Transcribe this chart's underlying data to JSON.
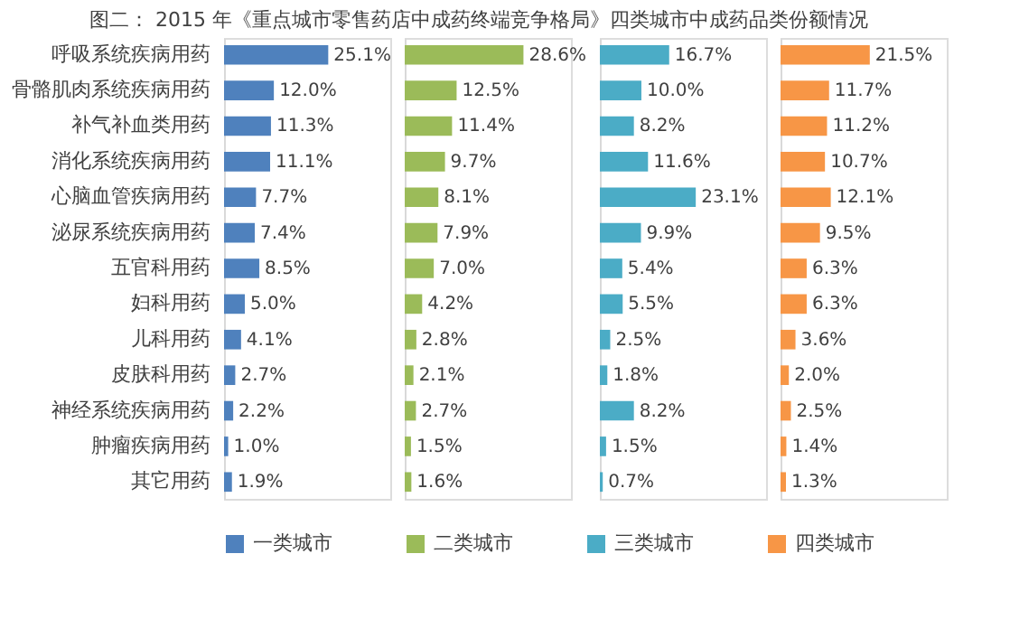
{
  "chart_data": [
    {
      "type": "bar",
      "orientation": "horizontal",
      "title": "图二： 2015 年《重点城市零售药店中成药终端竞争格局》四类城市中成药品类份额情况",
      "categories": [
        "呼吸系统疾病用药",
        "骨骼肌肉系统疾病用药",
        "补气补血类用药",
        "消化系统疾病用药",
        "心脑血管疾病用药",
        "泌尿系统疾病用药",
        "五官科用药",
        "妇科用药",
        "儿科用药",
        "皮肤科用药",
        "神经系统疾病用药",
        "肿瘤疾病用药",
        "其它用药"
      ],
      "series": [
        {
          "name": "一类城市",
          "color": "#4f81bd",
          "values": [
            25.1,
            12.0,
            11.3,
            11.1,
            7.7,
            7.4,
            8.5,
            5.0,
            4.1,
            2.7,
            2.2,
            1.0,
            1.9
          ],
          "value_labels": [
            "25.1%",
            "12.0%",
            "11.3%",
            "11.1%",
            "7.7%",
            "7.4%",
            "8.5%",
            "5.0%",
            "4.1%",
            "2.7%",
            "2.2%",
            "1.0%",
            "1.9%"
          ]
        }
      ],
      "tick_labels": "y",
      "legend": "bottom"
    },
    {
      "type": "bar",
      "orientation": "horizontal",
      "categories": [
        null,
        null,
        null,
        null,
        null,
        null,
        null,
        null,
        null,
        null,
        null,
        null,
        null
      ],
      "series": [
        {
          "name": "二类城市",
          "color": "#9bbb59",
          "values": [
            28.6,
            12.5,
            11.4,
            9.7,
            8.1,
            7.9,
            7.0,
            4.2,
            2.8,
            2.1,
            2.7,
            1.5,
            1.6
          ],
          "value_labels": [
            "28.6%",
            "12.5%",
            "11.4%",
            "9.7%",
            "8.1%",
            "7.9%",
            "7.0%",
            "4.2%",
            "2.8%",
            "2.1%",
            "2.7%",
            "1.5%",
            "1.6%"
          ]
        }
      ],
      "tick_labels": false,
      "legend": "bottom"
    },
    {
      "type": "bar",
      "orientation": "horizontal",
      "categories": [
        null,
        null,
        null,
        null,
        null,
        null,
        null,
        null,
        null,
        null,
        null,
        null,
        null
      ],
      "series": [
        {
          "name": "三类城市",
          "color": "#4bacc6",
          "values": [
            16.7,
            10.0,
            8.2,
            11.6,
            23.1,
            9.9,
            5.4,
            5.5,
            2.5,
            1.8,
            8.2,
            1.5,
            0.7
          ],
          "value_labels": [
            "16.7%",
            "10.0%",
            "8.2%",
            "11.6%",
            "23.1%",
            "9.9%",
            "5.4%",
            "5.5%",
            "2.5%",
            "1.8%",
            "8.2%",
            "1.5%",
            "0.7%"
          ]
        }
      ],
      "tick_labels": false,
      "legend": "bottom"
    },
    {
      "type": "bar",
      "orientation": "horizontal",
      "categories": [
        null,
        null,
        null,
        null,
        null,
        null,
        null,
        null,
        null,
        null,
        null,
        null,
        null
      ],
      "series": [
        {
          "name": "四类城市",
          "color": "#f79646",
          "values": [
            21.5,
            11.7,
            11.2,
            10.7,
            12.1,
            9.5,
            6.3,
            6.3,
            3.6,
            2.0,
            2.5,
            1.4,
            1.3
          ],
          "value_labels": [
            "21.5%",
            "11.7%",
            "11.2%",
            "10.7%",
            "12.1%",
            "9.5%",
            "6.3%",
            "6.3%",
            "3.6%",
            "2.0%",
            "2.5%",
            "1.4%",
            "1.3%"
          ]
        }
      ],
      "tick_labels": false,
      "legend": "bottom"
    }
  ]
}
